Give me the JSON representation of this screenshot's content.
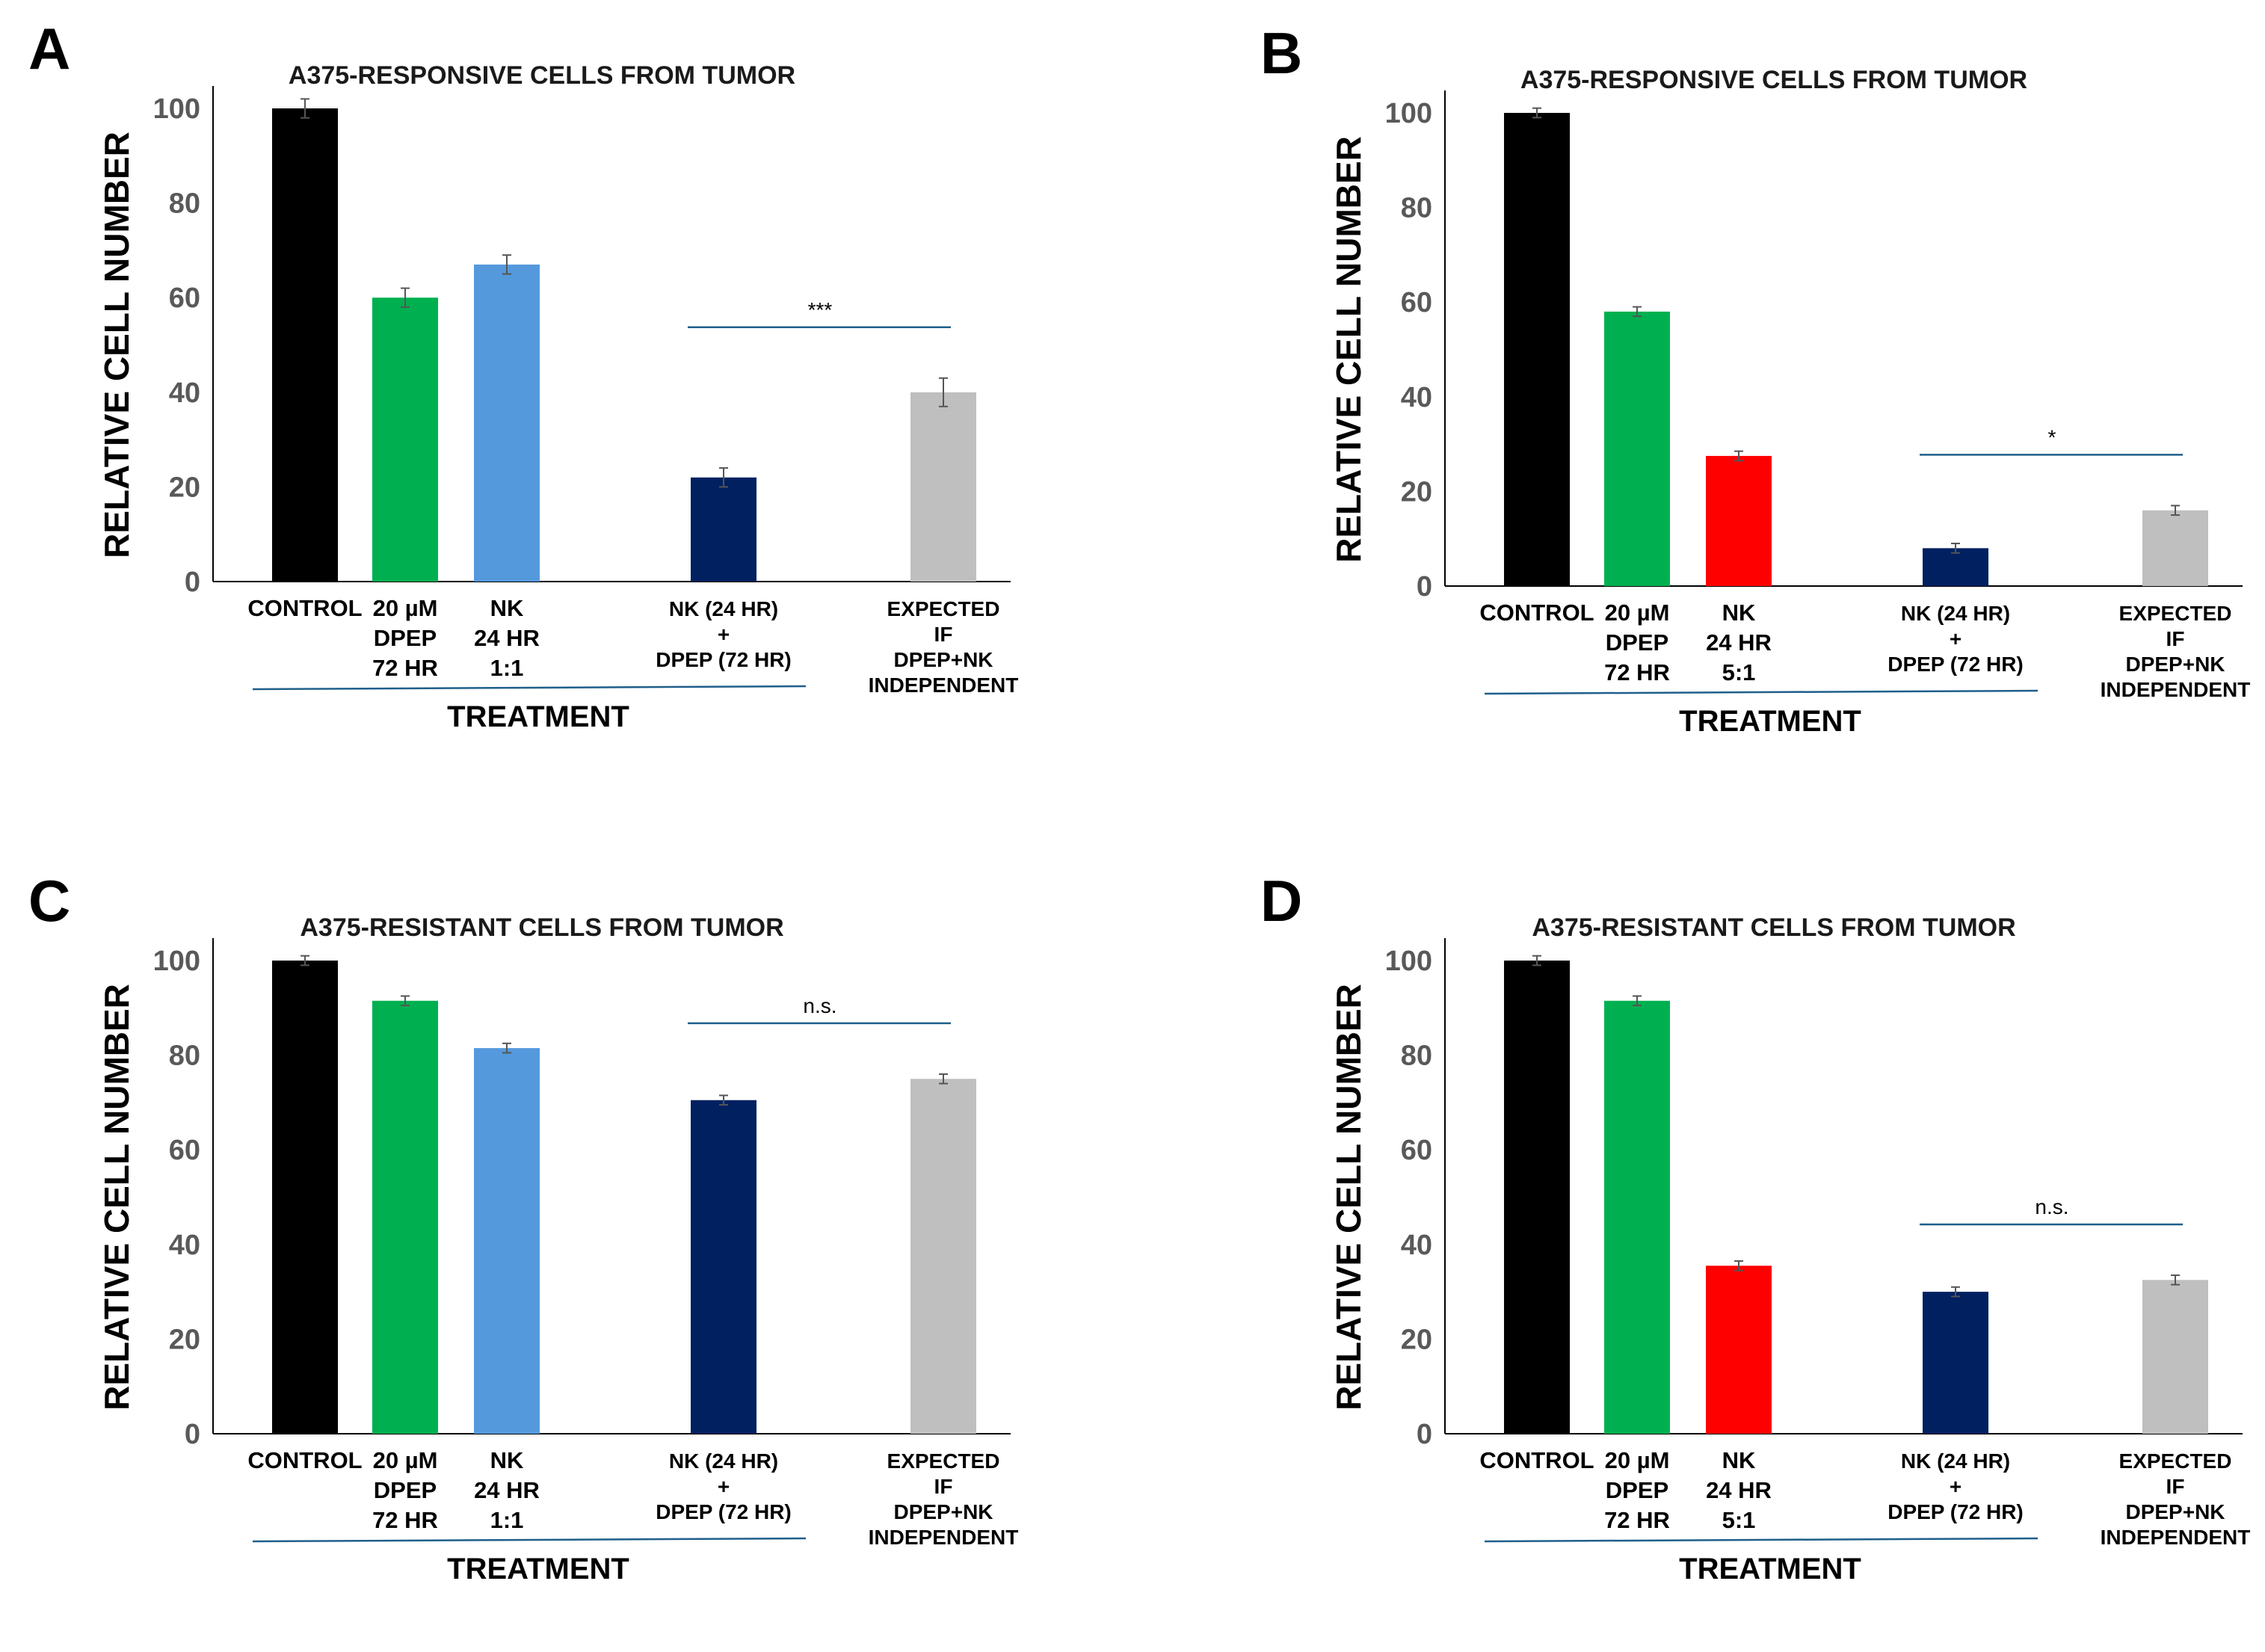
{
  "colors": {
    "control": "#000000",
    "dpep": "#00b050",
    "nk_1to1": "#5599dd",
    "nk_5to1": "#ff0000",
    "combo": "#002060",
    "expected": "#bfbfbf",
    "annotation_line": "#1f5f8b",
    "axis": "#000000"
  },
  "chart_data": [
    {
      "panel": "A",
      "type": "bar",
      "title": "A375-RESPONSIVE CELLS FROM TUMOR",
      "ylabel": "RELATIVE CELL NUMBER",
      "xlabel": "TREATMENT",
      "ylim": [
        0,
        100
      ],
      "yticks": [
        "0",
        "20",
        "40",
        "60",
        "80",
        "100"
      ],
      "categories": [
        {
          "lines": [
            "CONTROL"
          ],
          "small": false
        },
        {
          "lines": [
            "20 µM",
            "DPEP",
            "72 HR"
          ],
          "small": false
        },
        {
          "lines": [
            "NK",
            "24 HR",
            "1:1"
          ],
          "small": false
        },
        {
          "lines": [
            "NK (24 HR)",
            "+",
            "DPEP (72 HR)"
          ],
          "small": true
        },
        {
          "lines": [
            "EXPECTED",
            "IF",
            "DPEP+NK",
            "INDEPENDENT"
          ],
          "small": true
        }
      ],
      "values": [
        100,
        60,
        67,
        22,
        40
      ],
      "errors": [
        2,
        2,
        2,
        2,
        3
      ],
      "bar_colors": [
        "control",
        "dpep",
        "nk_1to1",
        "combo",
        "expected"
      ],
      "significance": {
        "from": 3,
        "to": 4,
        "label": "***"
      }
    },
    {
      "panel": "B",
      "type": "bar",
      "title": "A375-RESPONSIVE CELLS FROM TUMOR",
      "ylabel": "RELATIVE CELL NUMBER",
      "xlabel": "TREATMENT",
      "ylim": [
        0,
        100
      ],
      "yticks": [
        "0",
        "20",
        "40",
        "60",
        "80",
        "100"
      ],
      "categories": [
        {
          "lines": [
            "CONTROL"
          ],
          "small": false
        },
        {
          "lines": [
            "20 µM",
            "DPEP",
            "72 HR"
          ],
          "small": false
        },
        {
          "lines": [
            "NK",
            "24 HR",
            "5:1"
          ],
          "small": false
        },
        {
          "lines": [
            "NK (24 HR)",
            "+",
            "DPEP (72 HR)"
          ],
          "small": true
        },
        {
          "lines": [
            "EXPECTED",
            "IF",
            "DPEP+NK",
            "INDEPENDENT"
          ],
          "small": true
        }
      ],
      "values": [
        100,
        58,
        27.5,
        8,
        16
      ],
      "errors": [
        1,
        1,
        1,
        1,
        1
      ],
      "bar_colors": [
        "control",
        "dpep",
        "nk_5to1",
        "combo",
        "expected"
      ],
      "significance": {
        "from": 3,
        "to": 4,
        "label": "*"
      }
    },
    {
      "panel": "C",
      "type": "bar",
      "title": "A375-RESISTANT CELLS FROM TUMOR",
      "ylabel": "RELATIVE CELL NUMBER",
      "xlabel": "TREATMENT",
      "ylim": [
        0,
        100
      ],
      "yticks": [
        "0",
        "20",
        "40",
        "60",
        "80",
        "100"
      ],
      "categories": [
        {
          "lines": [
            "CONTROL"
          ],
          "small": false
        },
        {
          "lines": [
            "20 µM",
            "DPEP",
            "72 HR"
          ],
          "small": false
        },
        {
          "lines": [
            "NK",
            "24 HR",
            "1:1"
          ],
          "small": false
        },
        {
          "lines": [
            "NK (24 HR)",
            "+",
            "DPEP (72 HR)"
          ],
          "small": true
        },
        {
          "lines": [
            "EXPECTED",
            "IF",
            "DPEP+NK",
            "INDEPENDENT"
          ],
          "small": true
        }
      ],
      "values": [
        100,
        91.5,
        81.5,
        70.5,
        75
      ],
      "errors": [
        1,
        1,
        1,
        1,
        1
      ],
      "bar_colors": [
        "control",
        "dpep",
        "nk_1to1",
        "combo",
        "expected"
      ],
      "significance": {
        "from": 3,
        "to": 4,
        "label": "n.s."
      }
    },
    {
      "panel": "D",
      "type": "bar",
      "title": "A375-RESISTANT CELLS FROM TUMOR",
      "ylabel": "RELATIVE CELL NUMBER",
      "xlabel": "TREATMENT",
      "ylim": [
        0,
        100
      ],
      "yticks": [
        "0",
        "20",
        "40",
        "60",
        "80",
        "100"
      ],
      "categories": [
        {
          "lines": [
            "CONTROL"
          ],
          "small": false
        },
        {
          "lines": [
            "20 µM",
            "DPEP",
            "72 HR"
          ],
          "small": false
        },
        {
          "lines": [
            "NK",
            "24 HR",
            "5:1"
          ],
          "small": false
        },
        {
          "lines": [
            "NK (24 HR)",
            "+",
            "DPEP (72 HR)"
          ],
          "small": true
        },
        {
          "lines": [
            "EXPECTED",
            "IF",
            "DPEP+NK",
            "INDEPENDENT"
          ],
          "small": true
        }
      ],
      "values": [
        100,
        91.5,
        35.5,
        30,
        32.5
      ],
      "errors": [
        1,
        1,
        1,
        1,
        1
      ],
      "bar_colors": [
        "control",
        "dpep",
        "nk_5to1",
        "combo",
        "expected"
      ],
      "significance": {
        "from": 3,
        "to": 4,
        "label": "n.s."
      }
    }
  ]
}
